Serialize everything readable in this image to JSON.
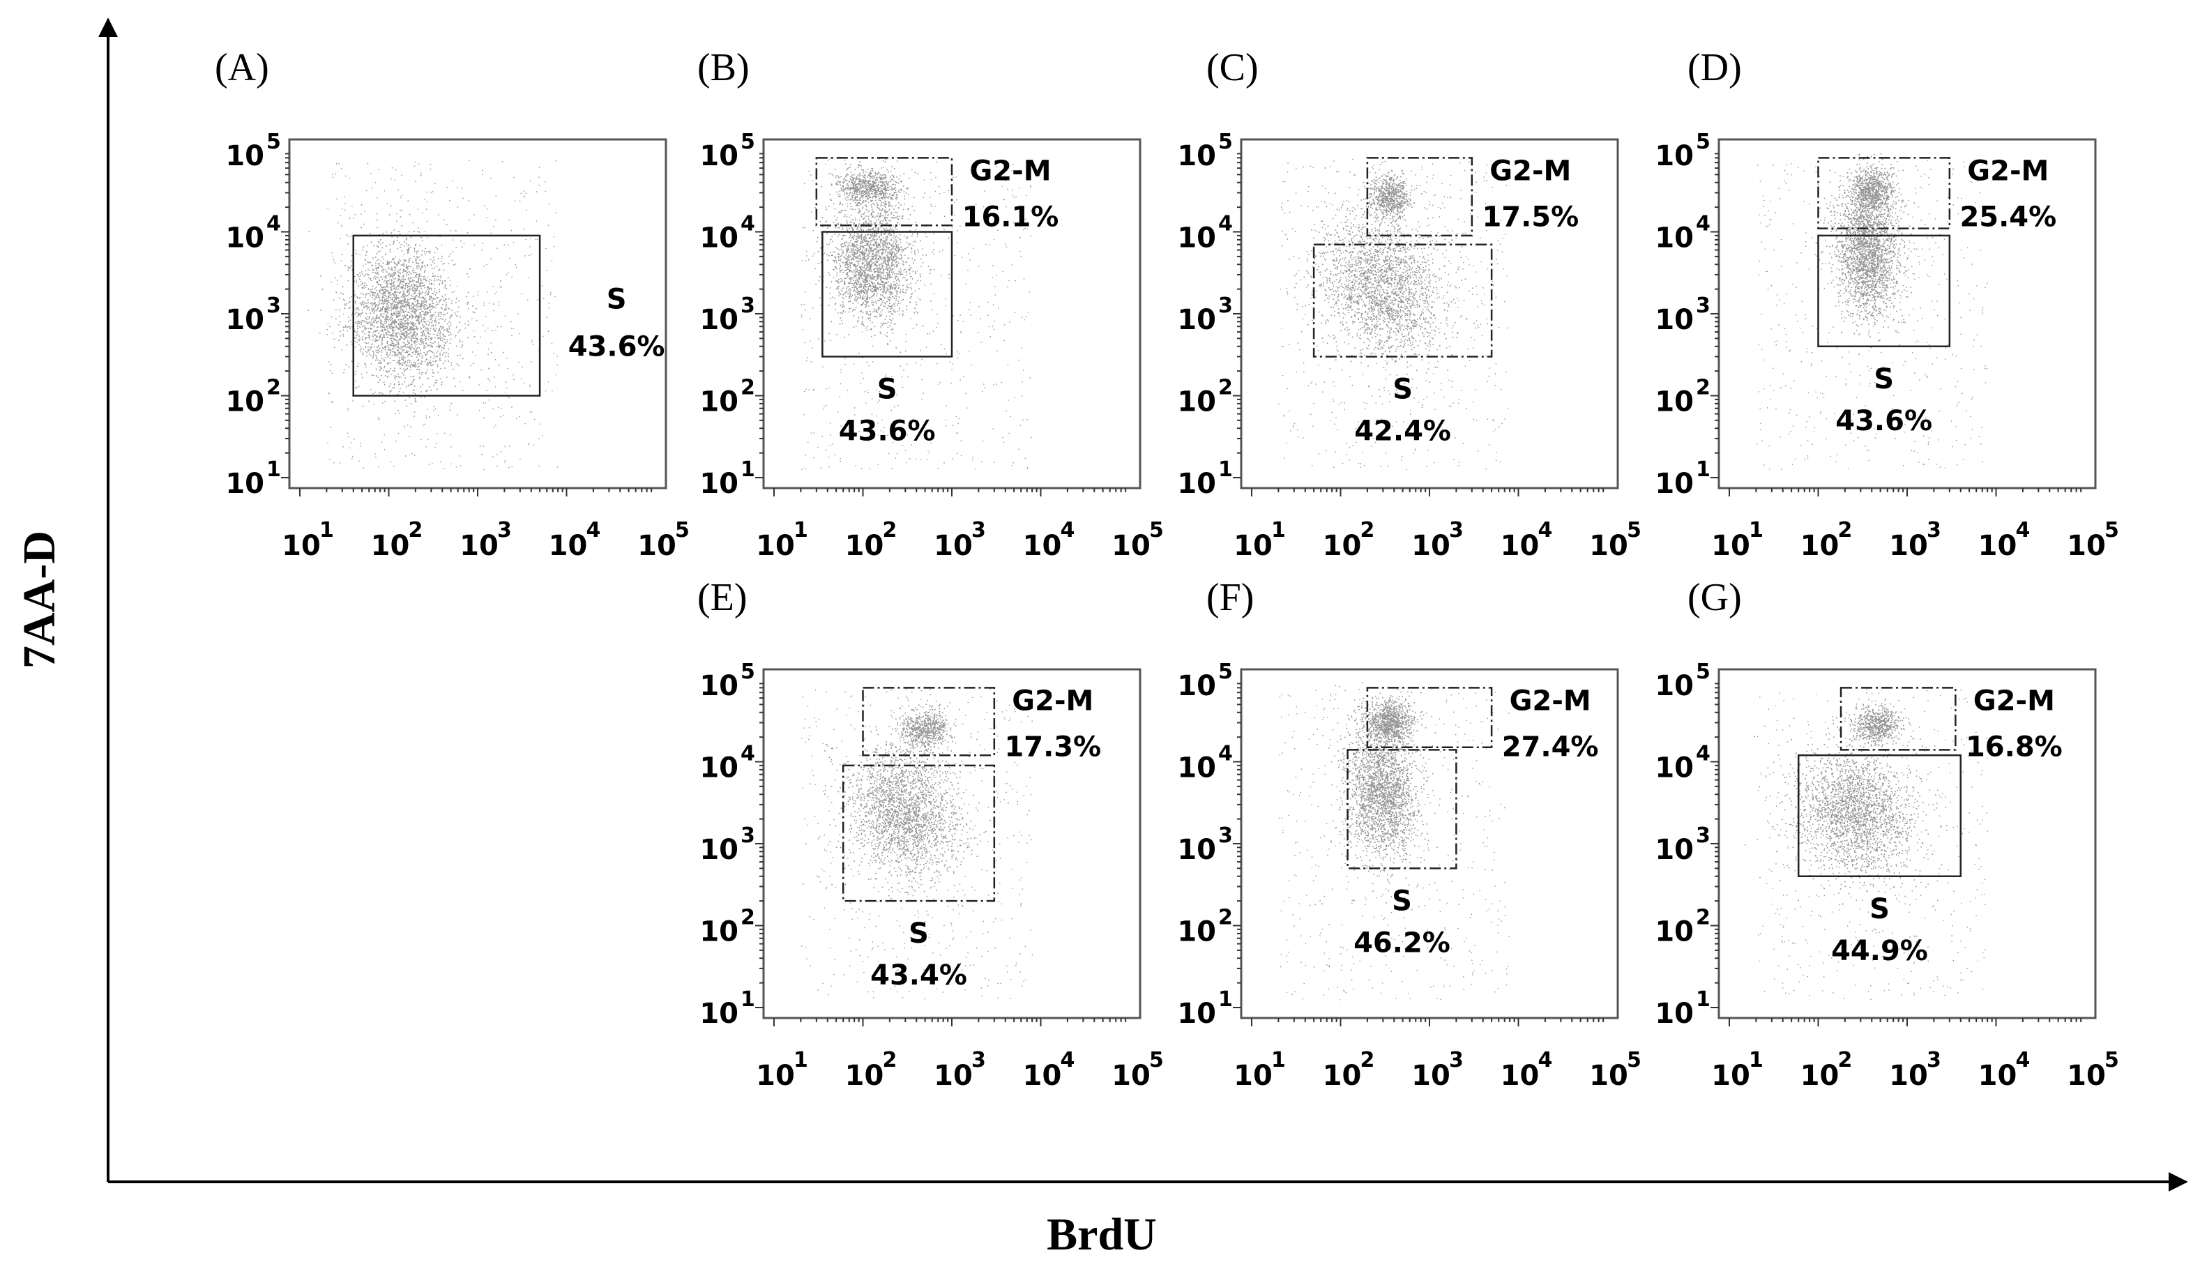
{
  "figure": {
    "ylabel": "7AA-D",
    "xlabel": "BrdU",
    "dot_color": "#3a3a3a",
    "axis_color": "#000000"
  },
  "chart_data": [
    {
      "type": "scatter",
      "panel": "(A)",
      "x_ticks": [
        "10",
        "10",
        "10",
        "10",
        "10"
      ],
      "x_exponents": [
        "1",
        "2",
        "3",
        "4",
        "5"
      ],
      "y_ticks": [
        "10",
        "10",
        "10",
        "10",
        "10"
      ],
      "y_exponents": [
        "1",
        "2",
        "3",
        "4",
        "5"
      ],
      "x_scale": "log",
      "y_scale": "log",
      "xlim": [
        10,
        100000
      ],
      "ylim": [
        10,
        100000
      ],
      "gates": [
        {
          "name": "S",
          "percent": "43.6%",
          "x_range": [
            40,
            5000
          ],
          "y_range": [
            100,
            9000
          ]
        }
      ]
    },
    {
      "type": "scatter",
      "panel": "(B)",
      "x_ticks": [
        "10",
        "10",
        "10",
        "10",
        "10"
      ],
      "x_exponents": [
        "1",
        "2",
        "3",
        "4",
        "5"
      ],
      "y_ticks": [
        "10",
        "10",
        "10",
        "10",
        "10"
      ],
      "y_exponents": [
        "1",
        "2",
        "3",
        "4",
        "5"
      ],
      "x_scale": "log",
      "y_scale": "log",
      "xlim": [
        10,
        100000
      ],
      "ylim": [
        10,
        100000
      ],
      "gates": [
        {
          "name": "G2-M",
          "percent": "16.1%",
          "x_range": [
            30,
            1000
          ],
          "y_range": [
            12000,
            80000
          ]
        },
        {
          "name": "S",
          "percent": "43.6%",
          "x_range": [
            35,
            1000
          ],
          "y_range": [
            300,
            10000
          ]
        }
      ]
    },
    {
      "type": "scatter",
      "panel": "(C)",
      "x_ticks": [
        "10",
        "10",
        "10",
        "10",
        "10"
      ],
      "x_exponents": [
        "1",
        "2",
        "3",
        "4",
        "5"
      ],
      "y_ticks": [
        "10",
        "10",
        "10",
        "10",
        "10"
      ],
      "y_exponents": [
        "1",
        "2",
        "3",
        "4",
        "5"
      ],
      "x_scale": "log",
      "y_scale": "log",
      "xlim": [
        10,
        100000
      ],
      "ylim": [
        10,
        100000
      ],
      "gates": [
        {
          "name": "G2-M",
          "percent": "17.5%",
          "x_range": [
            200,
            3000
          ],
          "y_range": [
            9000,
            80000
          ]
        },
        {
          "name": "S",
          "percent": "42.4%",
          "x_range": [
            50,
            5000
          ],
          "y_range": [
            300,
            7000
          ]
        }
      ]
    },
    {
      "type": "scatter",
      "panel": "(D)",
      "x_ticks": [
        "10",
        "10",
        "10",
        "10",
        "10"
      ],
      "x_exponents": [
        "1",
        "2",
        "3",
        "4",
        "5"
      ],
      "y_ticks": [
        "10",
        "10",
        "10",
        "10",
        "10"
      ],
      "y_exponents": [
        "1",
        "2",
        "3",
        "4",
        "5"
      ],
      "x_scale": "log",
      "y_scale": "log",
      "xlim": [
        10,
        100000
      ],
      "ylim": [
        10,
        100000
      ],
      "gates": [
        {
          "name": "G2-M",
          "percent": "25.4%",
          "x_range": [
            100,
            3000
          ],
          "y_range": [
            11000,
            80000
          ]
        },
        {
          "name": "S",
          "percent": "43.6%",
          "x_range": [
            100,
            3000
          ],
          "y_range": [
            400,
            9000
          ]
        }
      ]
    },
    {
      "type": "scatter",
      "panel": "(E)",
      "x_ticks": [
        "10",
        "10",
        "10",
        "10",
        "10"
      ],
      "x_exponents": [
        "1",
        "2",
        "3",
        "4",
        "5"
      ],
      "y_ticks": [
        "10",
        "10",
        "10",
        "10",
        "10"
      ],
      "y_exponents": [
        "1",
        "2",
        "3",
        "4",
        "5"
      ],
      "x_scale": "log",
      "y_scale": "log",
      "xlim": [
        10,
        100000
      ],
      "ylim": [
        10,
        100000
      ],
      "gates": [
        {
          "name": "G2-M",
          "percent": "17.3%",
          "x_range": [
            100,
            3000
          ],
          "y_range": [
            12000,
            80000
          ]
        },
        {
          "name": "S",
          "percent": "43.4%",
          "x_range": [
            60,
            3000
          ],
          "y_range": [
            200,
            9000
          ]
        }
      ]
    },
    {
      "type": "scatter",
      "panel": "(F)",
      "x_ticks": [
        "10",
        "10",
        "10",
        "10",
        "10"
      ],
      "x_exponents": [
        "1",
        "2",
        "3",
        "4",
        "5"
      ],
      "y_ticks": [
        "10",
        "10",
        "10",
        "10",
        "10"
      ],
      "y_exponents": [
        "1",
        "2",
        "3",
        "4",
        "5"
      ],
      "x_scale": "log",
      "y_scale": "log",
      "xlim": [
        10,
        100000
      ],
      "ylim": [
        10,
        100000
      ],
      "gates": [
        {
          "name": "G2-M",
          "percent": "27.4%",
          "x_range": [
            200,
            5000
          ],
          "y_range": [
            15000,
            80000
          ]
        },
        {
          "name": "S",
          "percent": "46.2%",
          "x_range": [
            120,
            2000
          ],
          "y_range": [
            500,
            14000
          ]
        }
      ]
    },
    {
      "type": "scatter",
      "panel": "(G)",
      "x_ticks": [
        "10",
        "10",
        "10",
        "10",
        "10"
      ],
      "x_exponents": [
        "1",
        "2",
        "3",
        "4",
        "5"
      ],
      "y_ticks": [
        "10",
        "10",
        "10",
        "10",
        "10"
      ],
      "y_exponents": [
        "1",
        "2",
        "3",
        "4",
        "5"
      ],
      "x_scale": "log",
      "y_scale": "log",
      "xlim": [
        10,
        100000
      ],
      "ylim": [
        10,
        100000
      ],
      "gates": [
        {
          "name": "G2-M",
          "percent": "16.8%",
          "x_range": [
            180,
            3500
          ],
          "y_range": [
            14000,
            80000
          ]
        },
        {
          "name": "S",
          "percent": "44.9%",
          "x_range": [
            60,
            4000
          ],
          "y_range": [
            400,
            12000
          ]
        }
      ]
    }
  ]
}
